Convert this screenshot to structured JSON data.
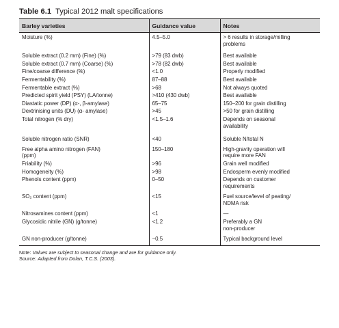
{
  "table": {
    "number": "Table 6.1",
    "caption": "Typical 2012 malt specifications",
    "headers": [
      "Barley varieties",
      "Guidance value",
      "Notes"
    ],
    "rows": [
      {
        "parameter": "Moisture (%)",
        "value": "4.5–5.0",
        "notes": [
          "> 6 results in storage/milling",
          "problems"
        ]
      },
      {
        "parameter": "Soluble extract (0.2 mm) (Fine) (%)",
        "value": ">79 (83 dwb)",
        "notes": [
          "Best available"
        ]
      },
      {
        "parameter": "Soluble extract (0.7 mm) (Coarse) (%)",
        "value": ">78 (82 dwb)",
        "notes": [
          "Best available"
        ]
      },
      {
        "parameter": "Fine/coarse difference (%)",
        "value": "<1.0",
        "notes": [
          "Properly modified"
        ]
      },
      {
        "parameter": "Fermentability (%)",
        "value": "87–88",
        "notes": [
          "Best available"
        ]
      },
      {
        "parameter": "Fermentable extract (%)",
        "value": ">68",
        "notes": [
          "Not always quoted"
        ]
      },
      {
        "parameter": "Predicted spirit yield (PSY) (LA/tonne)",
        "value": ">410 (430 dwb)",
        "notes": [
          "Best available"
        ]
      },
      {
        "parameter": "Diastatic power (DP) (α-, β-amylase)",
        "value": "65–75",
        "notes": [
          "150–200 for grain distilling"
        ]
      },
      {
        "parameter": "Dextrinising units (DU) (α- amylase)",
        "value": ">45",
        "notes": [
          ">50 for grain distilling"
        ]
      },
      {
        "parameter": "Total nitrogen (% dry)",
        "value": "<1.5–1.6",
        "notes": [
          "Depends on seasonal",
          "availability"
        ]
      },
      {
        "parameter": "Soluble nitrogen ratio (SNR)",
        "value": "<40",
        "notes": [
          "Soluble N/total N"
        ]
      },
      {
        "parameter": [
          "Free alpha amino nitrogen (FAN)",
          "(ppm)"
        ],
        "value": "150–180",
        "notes": [
          "High-gravity operation will",
          "require more FAN"
        ]
      },
      {
        "parameter": "Friability (%)",
        "value": ">96",
        "notes": [
          "Grain well modified"
        ]
      },
      {
        "parameter": "Homogeneity (%)",
        "value": ">98",
        "notes": [
          "Endosperm evenly modified"
        ]
      },
      {
        "parameter": "Phenols content (ppm)",
        "value": "0–50",
        "notes": [
          "Depends on customer",
          "requirements"
        ]
      },
      {
        "parameter": "SO₂ content (ppm)",
        "value": "<15",
        "notes": [
          "Fuel source/level of peating/",
          "NDMA risk"
        ]
      },
      {
        "parameter": "Nitrosamines content (ppm)",
        "value": "<1",
        "notes": [
          "—"
        ]
      },
      {
        "parameter": "Glycosidic nitrile (GN) (g/tonne)",
        "value": "<1.2",
        "notes": [
          "Preferably a GN",
          "non-producer"
        ]
      },
      {
        "parameter": "GN non-producer (g/tonne)",
        "value": "~0.5",
        "notes": [
          "Typical background level"
        ]
      }
    ]
  },
  "footnotes": {
    "note_label": "Note:",
    "note_text": "Values are subject to seasonal change and are for guidance only.",
    "source_label": "Source:",
    "source_text": "Adapted from Dolan, T.C.S. (2003)."
  }
}
